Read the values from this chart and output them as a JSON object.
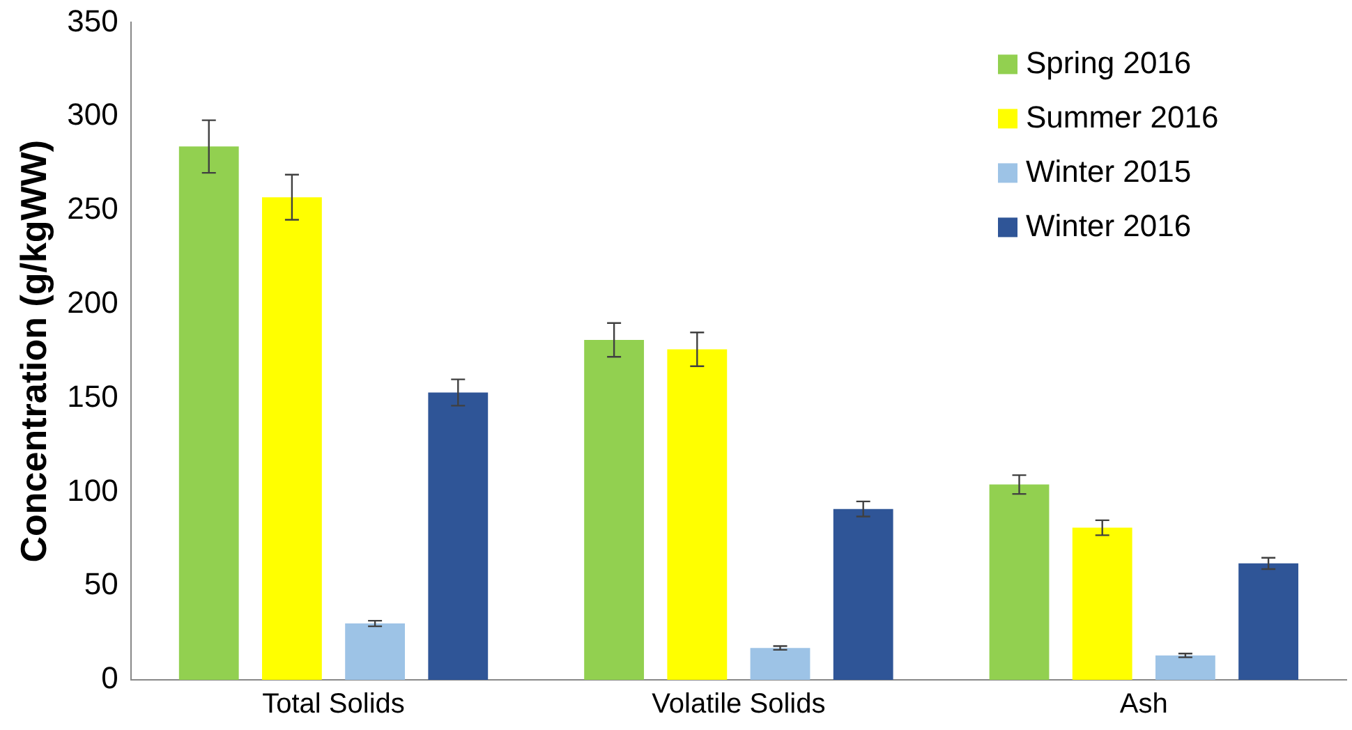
{
  "chart_data": {
    "type": "bar",
    "ylabel": "Concentration (g/kgWW)",
    "categories": [
      "Total Solids",
      "Volatile Solids",
      "Ash"
    ],
    "series": [
      {
        "name": "Spring 2016",
        "color": "#92d050",
        "values": [
          284,
          181,
          104
        ],
        "errors": [
          14,
          9,
          5
        ]
      },
      {
        "name": "Summer 2016",
        "color": "#ffff00",
        "values": [
          257,
          176,
          81
        ],
        "errors": [
          12,
          9,
          4
        ]
      },
      {
        "name": "Winter 2015",
        "color": "#9dc3e6",
        "values": [
          30,
          17,
          13
        ],
        "errors": [
          1.5,
          1,
          1
        ]
      },
      {
        "name": "Winter 2016",
        "color": "#2f5597",
        "values": [
          153,
          91,
          62
        ],
        "errors": [
          7,
          4,
          3
        ]
      }
    ],
    "ylim": [
      0,
      350
    ],
    "yticks": [
      0,
      50,
      100,
      150,
      200,
      250,
      300,
      350
    ],
    "grid": false,
    "legend": "top right"
  }
}
